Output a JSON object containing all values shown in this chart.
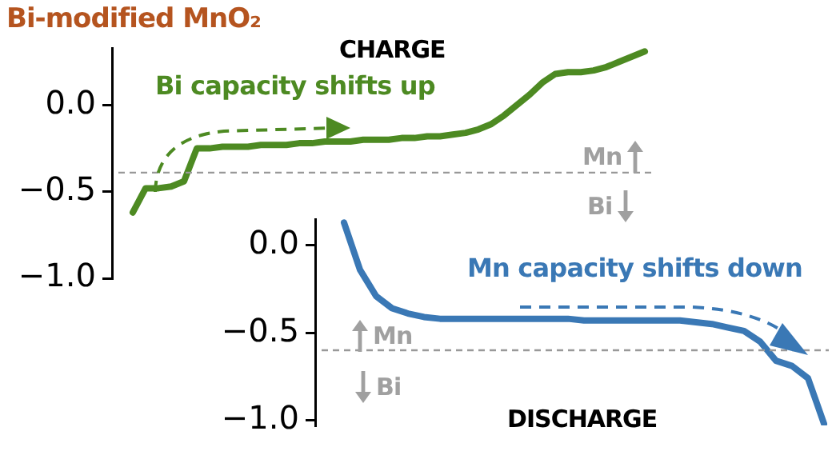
{
  "chart_data": [
    {
      "type": "line",
      "title": "Bi-modified MnO₂",
      "subtitle": "CHARGE",
      "categories": [
        null,
        null,
        null,
        null,
        null,
        null,
        null,
        null,
        null,
        null,
        null,
        null,
        null,
        null,
        null,
        null,
        null,
        null,
        null,
        null,
        null,
        null,
        null,
        null,
        null,
        null,
        null,
        null,
        null,
        null,
        null,
        null,
        null,
        null,
        null,
        null,
        null,
        null,
        null,
        null,
        null
      ],
      "series": [
        {
          "color": "#4d8a22",
          "values": [
            -0.62,
            -0.48,
            -0.48,
            -0.47,
            -0.44,
            -0.25,
            -0.25,
            -0.24,
            -0.24,
            -0.24,
            -0.23,
            -0.23,
            -0.23,
            -0.22,
            -0.22,
            -0.21,
            -0.21,
            -0.21,
            -0.2,
            -0.2,
            -0.2,
            -0.19,
            -0.19,
            -0.18,
            -0.18,
            -0.17,
            -0.16,
            -0.14,
            -0.11,
            -0.06,
            0.0,
            0.06,
            0.13,
            0.18,
            0.19,
            0.19,
            0.2,
            0.22,
            0.25,
            0.28,
            0.31
          ]
        }
      ],
      "ylim": [
        -1.0,
        0.33
      ],
      "yticks": [
        {
          "value": 0,
          "label": "0.0"
        },
        {
          "value": -0.5,
          "label": "−0.5"
        },
        {
          "value": -1.0,
          "label": "−1.0"
        }
      ],
      "tick_labels": "y",
      "grid": false,
      "ref_lines": [
        {
          "axis": "y",
          "value": -0.39,
          "color": "#999999",
          "line_style": "dashed"
        }
      ],
      "annotations": [
        "Bi capacity shifts up",
        "Mn",
        "Bi"
      ]
    },
    {
      "type": "line",
      "title": "DISCHARGE",
      "categories": [
        null,
        null,
        null,
        null,
        null,
        null,
        null,
        null,
        null,
        null,
        null,
        null,
        null,
        null,
        null,
        null,
        null,
        null,
        null,
        null,
        null,
        null,
        null,
        null,
        null,
        null,
        null,
        null,
        null,
        null,
        null
      ],
      "series": [
        {
          "color": "#3a78b5",
          "values": [
            0.13,
            -0.14,
            -0.29,
            -0.36,
            -0.39,
            -0.41,
            -0.42,
            -0.42,
            -0.42,
            -0.42,
            -0.42,
            -0.42,
            -0.42,
            -0.42,
            -0.42,
            -0.43,
            -0.43,
            -0.43,
            -0.43,
            -0.43,
            -0.43,
            -0.43,
            -0.44,
            -0.45,
            -0.47,
            -0.49,
            -0.55,
            -0.66,
            -0.69,
            -0.76,
            -1.02
          ]
        }
      ],
      "ylim": [
        -1.03,
        0.15
      ],
      "yticks": [
        {
          "value": 0,
          "label": "0.0"
        },
        {
          "value": -0.5,
          "label": "−0.5"
        },
        {
          "value": -1.0,
          "label": "−1.0"
        }
      ],
      "tick_labels": "y",
      "grid": false,
      "ref_lines": [
        {
          "axis": "y",
          "value": -0.6,
          "color": "#999999",
          "line_style": "dashed"
        }
      ],
      "annotations": [
        "Mn capacity shifts down",
        "Mn",
        "Bi"
      ]
    }
  ]
}
